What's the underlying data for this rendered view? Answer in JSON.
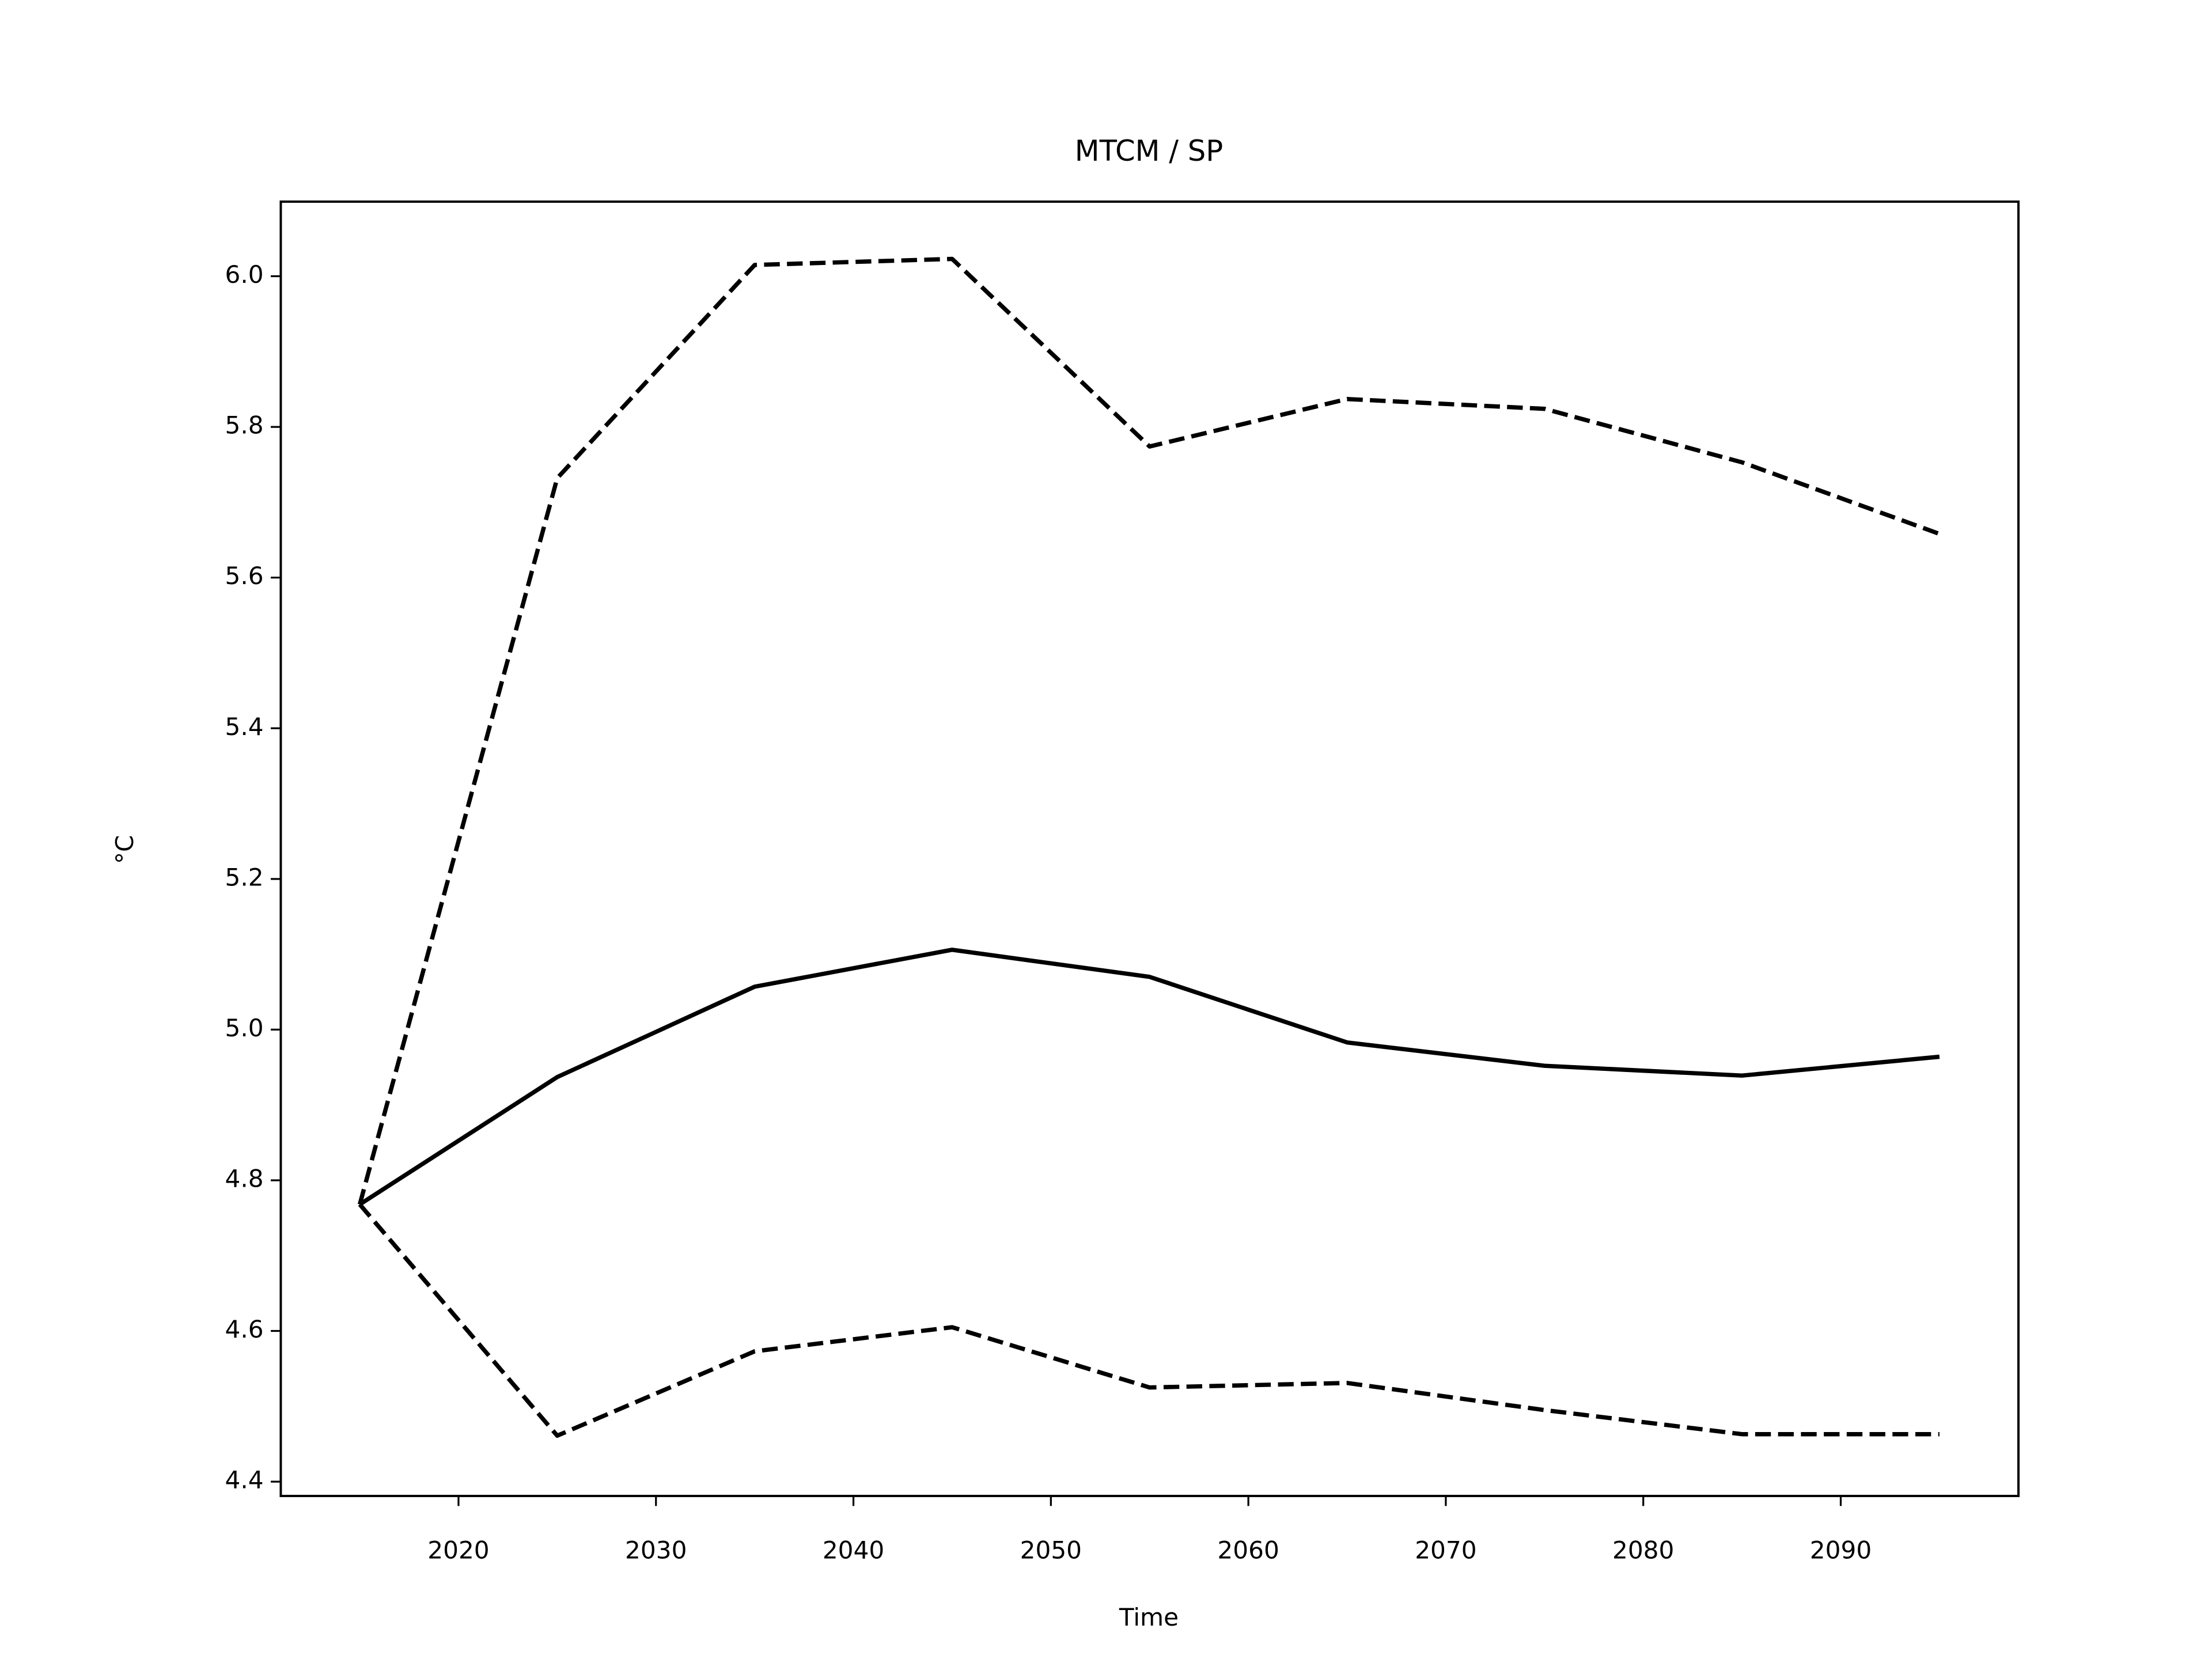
{
  "chart_data": {
    "type": "line",
    "title": "MTCM / SP",
    "xlabel": "Time",
    "ylabel": "°C",
    "x": [
      2015,
      2025,
      2035,
      2045,
      2055,
      2065,
      2075,
      2085,
      2095
    ],
    "series": [
      {
        "color": "#000000",
        "style": "solid",
        "values": [
          4.768,
          4.937,
          5.057,
          5.106,
          5.07,
          4.983,
          4.952,
          4.939,
          4.964
        ]
      },
      {
        "color": "#000000",
        "style": "dashed",
        "values": [
          4.768,
          5.732,
          6.015,
          6.023,
          5.774,
          5.837,
          5.824,
          5.753,
          5.658
        ]
      },
      {
        "color": "#000000",
        "style": "dashed",
        "values": [
          4.768,
          4.461,
          4.573,
          4.605,
          4.525,
          4.531,
          4.495,
          4.463,
          4.463
        ]
      }
    ],
    "xlim": [
      2011,
      2099
    ],
    "xticks": [
      2020,
      2030,
      2040,
      2050,
      2060,
      2070,
      2080,
      2090
    ],
    "ylim": [
      4.381,
      6.099
    ],
    "yticks": [
      4.4,
      4.6,
      4.8,
      {
        "value": 5,
        "label": "5.0"
      },
      5.2,
      5.4,
      5.6,
      5.8,
      {
        "value": 6,
        "label": "6.0"
      }
    ],
    "grid": false
  }
}
